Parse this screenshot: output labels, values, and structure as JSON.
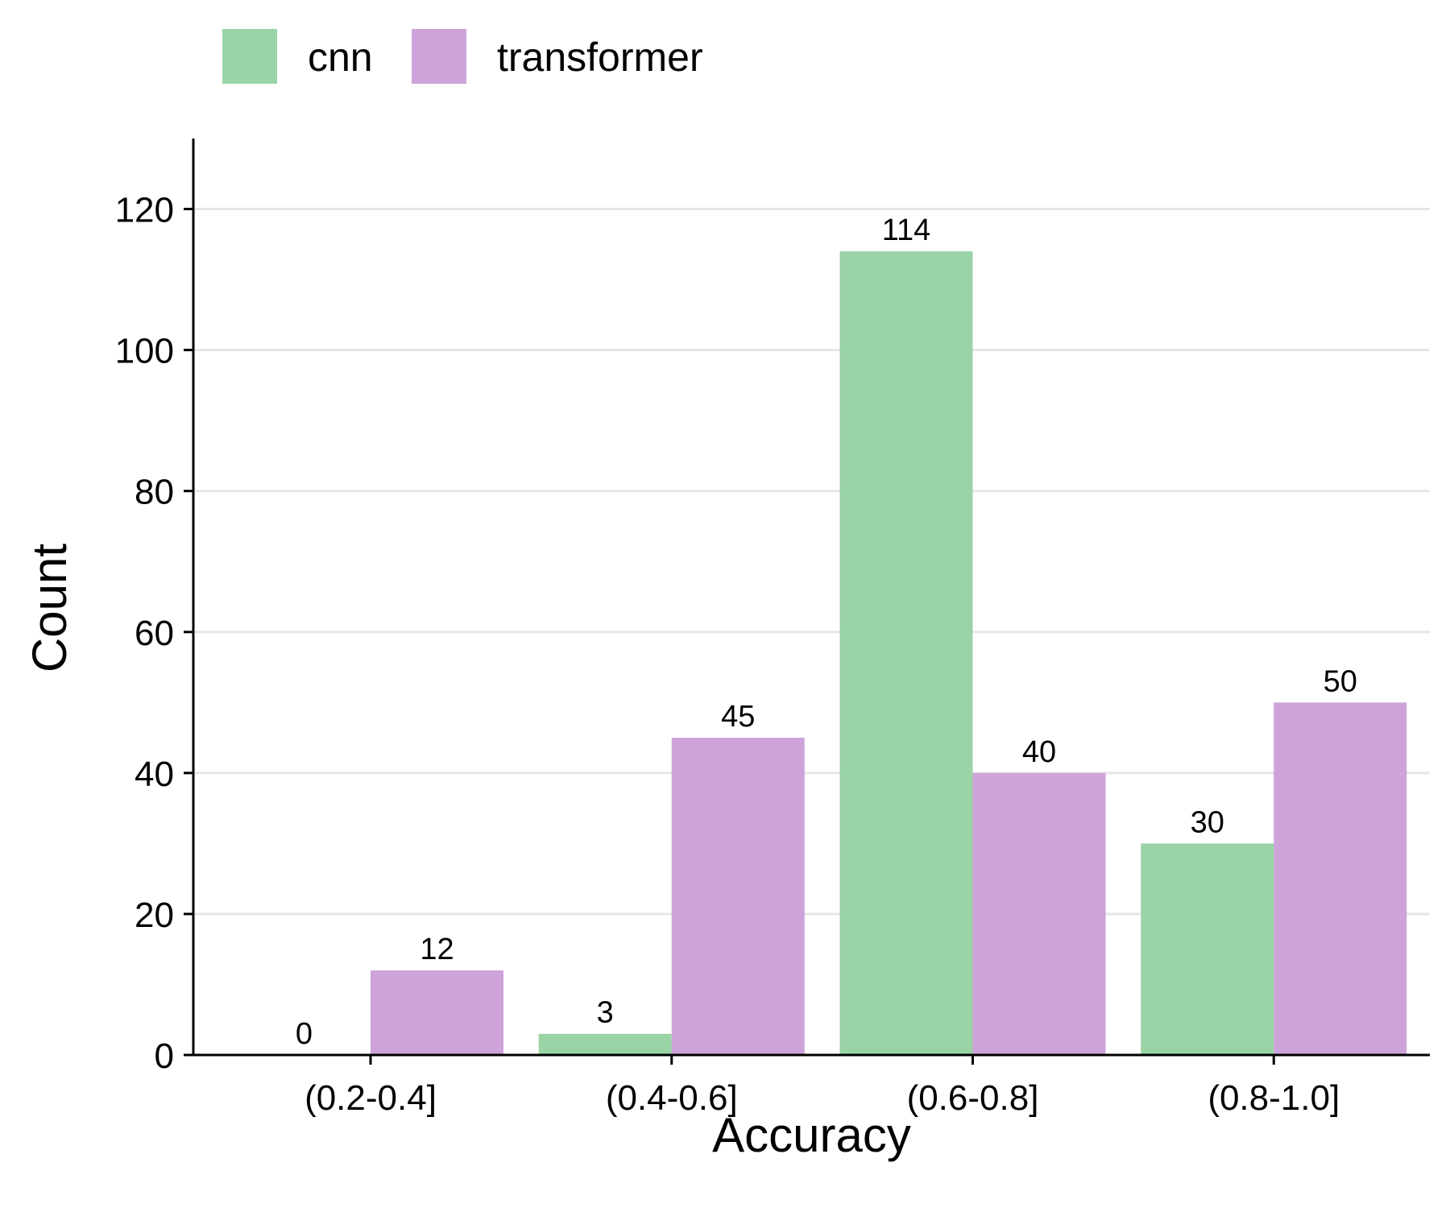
{
  "chart_data": {
    "type": "bar",
    "title": "",
    "xlabel": "Accuracy",
    "ylabel": "Count",
    "categories": [
      "(0.2-0.4]",
      "(0.4-0.6]",
      "(0.6-0.8]",
      "(0.8-1.0]"
    ],
    "series": [
      {
        "name": "cnn",
        "color": "#99d3a6",
        "values": [
          0,
          3,
          114,
          30
        ]
      },
      {
        "name": "transformer",
        "color": "#cda3da",
        "values": [
          12,
          45,
          40,
          50
        ]
      }
    ],
    "ylim": [
      0,
      130
    ],
    "yticks": [
      0,
      20,
      40,
      60,
      80,
      100,
      120
    ],
    "grid": "horizontal",
    "legend": "top-left"
  }
}
